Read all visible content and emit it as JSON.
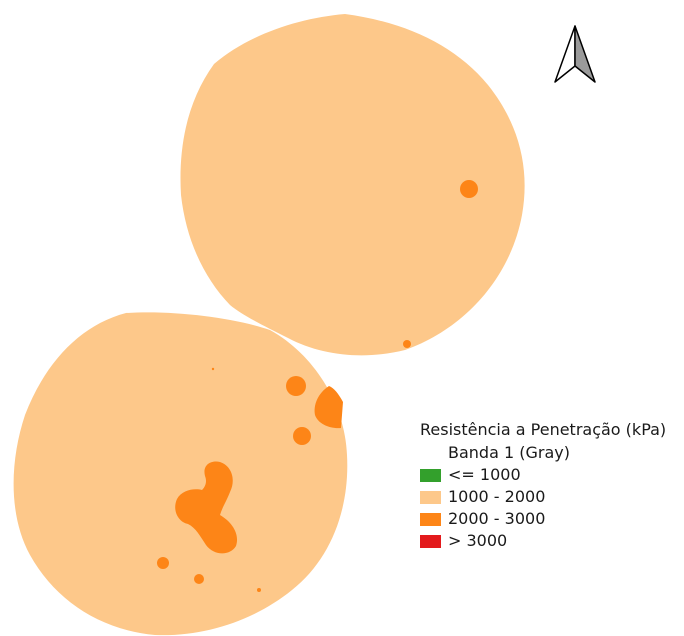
{
  "legend": {
    "title": "Resistência a Penetração (kPa)",
    "subtitle": "Banda 1 (Gray)",
    "items": [
      {
        "label": "<= 1000",
        "color": "#33a02c"
      },
      {
        "label": "1000 - 2000",
        "color": "#fdc88a"
      },
      {
        "label": "2000 - 3000",
        "color": "#fd8517"
      },
      {
        "label": "> 3000",
        "color": "#e31a1c"
      }
    ]
  },
  "map": {
    "base_color": "#fdc88a",
    "high_color": "#fd8517",
    "north_arrow_icon": "north-arrow-icon"
  }
}
